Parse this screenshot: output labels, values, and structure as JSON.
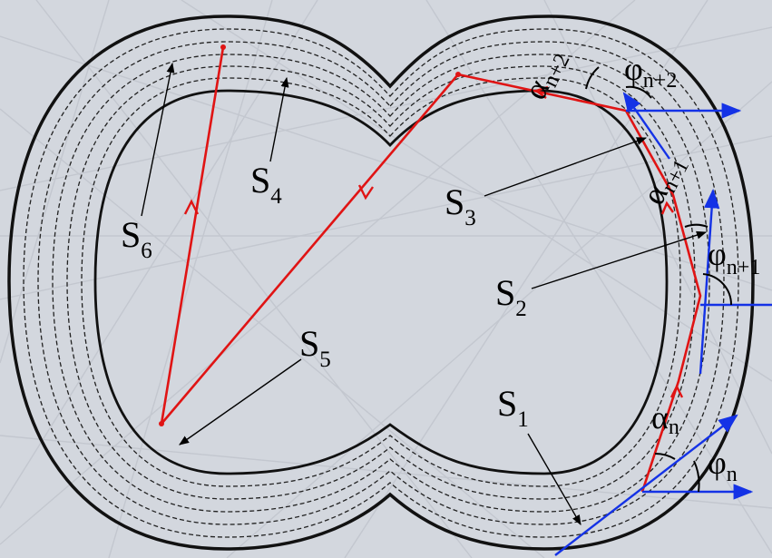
{
  "diagram": {
    "colors": {
      "background": "#d3d7de",
      "texture_lines": "#c0c4cc",
      "boundary": "#111111",
      "trajectory": "#e01414",
      "vectors": "#1432e6",
      "annotation": "#000000"
    },
    "labels": {
      "s1": {
        "base": "S",
        "sub": "1"
      },
      "s2": {
        "base": "S",
        "sub": "2"
      },
      "s3": {
        "base": "S",
        "sub": "3"
      },
      "s4": {
        "base": "S",
        "sub": "4"
      },
      "s5": {
        "base": "S",
        "sub": "5"
      },
      "s6": {
        "base": "S",
        "sub": "6"
      },
      "alpha_n": {
        "base": "α",
        "sub": "n"
      },
      "phi_n": {
        "base": "φ",
        "sub": "n"
      },
      "alpha_n1": {
        "base": "α",
        "sub": "n+1"
      },
      "phi_n1": {
        "base": "φ",
        "sub": "n+1"
      },
      "alpha_n2": {
        "base": "α",
        "sub": "n+2"
      },
      "phi_n2": {
        "base": "φ",
        "sub": "n+2"
      }
    }
  }
}
